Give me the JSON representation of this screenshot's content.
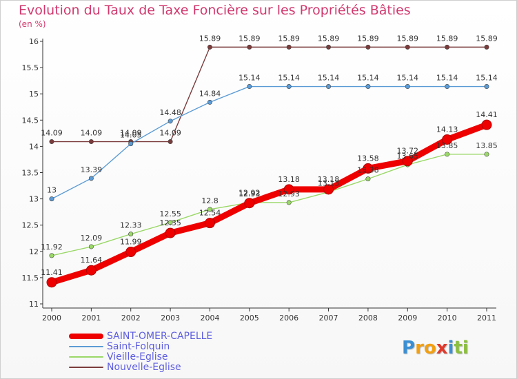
{
  "title": "Evolution du Taux de Taxe Foncière sur les Propriétés Bâties",
  "unit": "(en %)",
  "logo": {
    "letters": [
      "P",
      "r",
      "o",
      "x",
      "i",
      "t",
      "i"
    ],
    "colors": [
      "#3a8fd4",
      "#f2a012",
      "#f2a012",
      "#e0392b",
      "#3a8fd4",
      "#8cbf3f",
      "#8cbf3f"
    ]
  },
  "chart_data": {
    "type": "line",
    "title": "Evolution du Taux de Taxe Foncière sur les Propriétés Bâties",
    "ylabel": "(en %)",
    "x": [
      "2000",
      "2001",
      "2002",
      "2003",
      "2004",
      "2005",
      "2006",
      "2007",
      "2008",
      "2009",
      "2010",
      "2011"
    ],
    "ylim": [
      11,
      16
    ],
    "yticks": [
      "11",
      "11.5",
      "12",
      "12.5",
      "13",
      "13.5",
      "14",
      "14.5",
      "15",
      "15.5",
      "16"
    ],
    "grid": false,
    "legend": "bottom-left",
    "series": [
      {
        "name": "SAINT-OMER-CAPELLE",
        "color": "#ee0000",
        "values": [
          11.41,
          11.64,
          11.99,
          12.35,
          12.54,
          12.92,
          13.18,
          13.18,
          13.58,
          13.72,
          14.13,
          14.41
        ],
        "labels": [
          "11.41",
          "11.64",
          "11.99",
          "12.35",
          "12.54",
          "12.92",
          "13.18",
          "13.18",
          "13.58",
          "13.72",
          "14.13",
          "14.41"
        ]
      },
      {
        "name": "Saint-Folquin",
        "color": "#5b9bd5",
        "values": [
          13,
          13.39,
          14.05,
          14.48,
          14.84,
          15.14,
          15.14,
          15.14,
          15.14,
          15.14,
          15.14,
          15.14
        ],
        "labels": [
          "13",
          "13.39",
          "14.05",
          "14.48",
          "14.84",
          "15.14",
          "15.14",
          "15.14",
          "15.14",
          "15.14",
          "15.14",
          "15.14"
        ]
      },
      {
        "name": "Vieille-Eglise",
        "color": "#9ad867",
        "values": [
          11.92,
          12.09,
          12.33,
          12.55,
          12.8,
          12.93,
          12.93,
          13.13,
          13.38,
          13.65,
          13.85,
          13.85
        ],
        "labels": [
          "11.92",
          "12.09",
          "12.33",
          "12.55",
          "12.8",
          "12.93",
          "12.93",
          "13.13",
          "13.38",
          "13.65",
          "13.85",
          "13.85"
        ]
      },
      {
        "name": "Nouvelle-Eglise",
        "color": "#7b3b3b",
        "values": [
          14.09,
          14.09,
          14.09,
          14.09,
          15.89,
          15.89,
          15.89,
          15.89,
          15.89,
          15.89,
          15.89,
          15.89
        ],
        "labels": [
          "14.09",
          "14.09",
          "14.09",
          "14.09",
          "15.89",
          "15.89",
          "15.89",
          "15.89",
          "15.89",
          "15.89",
          "15.89",
          "15.89"
        ]
      }
    ]
  }
}
